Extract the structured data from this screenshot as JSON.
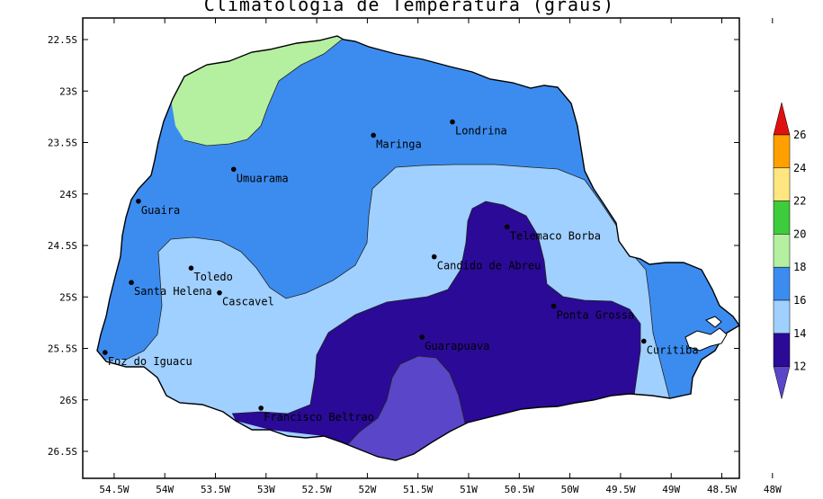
{
  "title": "Climatologia de Temperatura (graus)",
  "map": {
    "lat_ticks": [
      "22.5S",
      "23S",
      "23.5S",
      "24S",
      "24.5S",
      "25S",
      "25.5S",
      "26S",
      "26.5S"
    ],
    "lon_ticks": [
      "54.5W",
      "54W",
      "53.5W",
      "53W",
      "52.5W",
      "52W",
      "51.5W",
      "51W",
      "50.5W",
      "50W",
      "49.5W",
      "49W",
      "48.5W",
      "48W"
    ],
    "cities": [
      {
        "name": "Londrina",
        "lon": -51.16,
        "lat": -23.3
      },
      {
        "name": "Maringa",
        "lon": -51.94,
        "lat": -23.43
      },
      {
        "name": "Umuarama",
        "lon": -53.32,
        "lat": -23.76
      },
      {
        "name": "Guaira",
        "lon": -54.26,
        "lat": -24.07
      },
      {
        "name": "Telemaco Borba",
        "lon": -50.62,
        "lat": -24.32
      },
      {
        "name": "Candido de Abreu",
        "lon": -51.34,
        "lat": -24.61
      },
      {
        "name": "Santa Helena",
        "lon": -54.33,
        "lat": -24.86
      },
      {
        "name": "Toledo",
        "lon": -53.74,
        "lat": -24.72
      },
      {
        "name": "Cascavel",
        "lon": -53.46,
        "lat": -24.96
      },
      {
        "name": "Ponta Grossa",
        "lon": -50.16,
        "lat": -25.09
      },
      {
        "name": "Guarapuava",
        "lon": -51.46,
        "lat": -25.39
      },
      {
        "name": "Curitiba",
        "lon": -49.27,
        "lat": -25.43
      },
      {
        "name": "Foz do Iguacu",
        "lon": -54.59,
        "lat": -25.54
      },
      {
        "name": "Francisco Beltrao",
        "lon": -53.05,
        "lat": -26.08
      }
    ]
  },
  "legend": {
    "levels": [
      {
        "label": "26",
        "color": "#ffa000"
      },
      {
        "label": "24",
        "color": "#ffe680"
      },
      {
        "label": "22",
        "color": "#3ccc3c"
      },
      {
        "label": "20",
        "color": "#b4f0a0"
      },
      {
        "label": "18",
        "color": "#3c8cf0"
      },
      {
        "label": "16",
        "color": "#a0d0ff"
      },
      {
        "label": "14",
        "color": "#2a0a96"
      },
      {
        "label": "12",
        "color": "#5a46c8"
      }
    ],
    "top_color": "#e01010",
    "bottom_color": "#5a46c8"
  },
  "colors": {
    "zone_18_20": "#b4f0a0",
    "zone_16_18": "#3c8cf0",
    "zone_14_16": "#a0d0ff",
    "zone_12_14": "#2a0a96",
    "zone_below_12": "#5a46c8"
  }
}
